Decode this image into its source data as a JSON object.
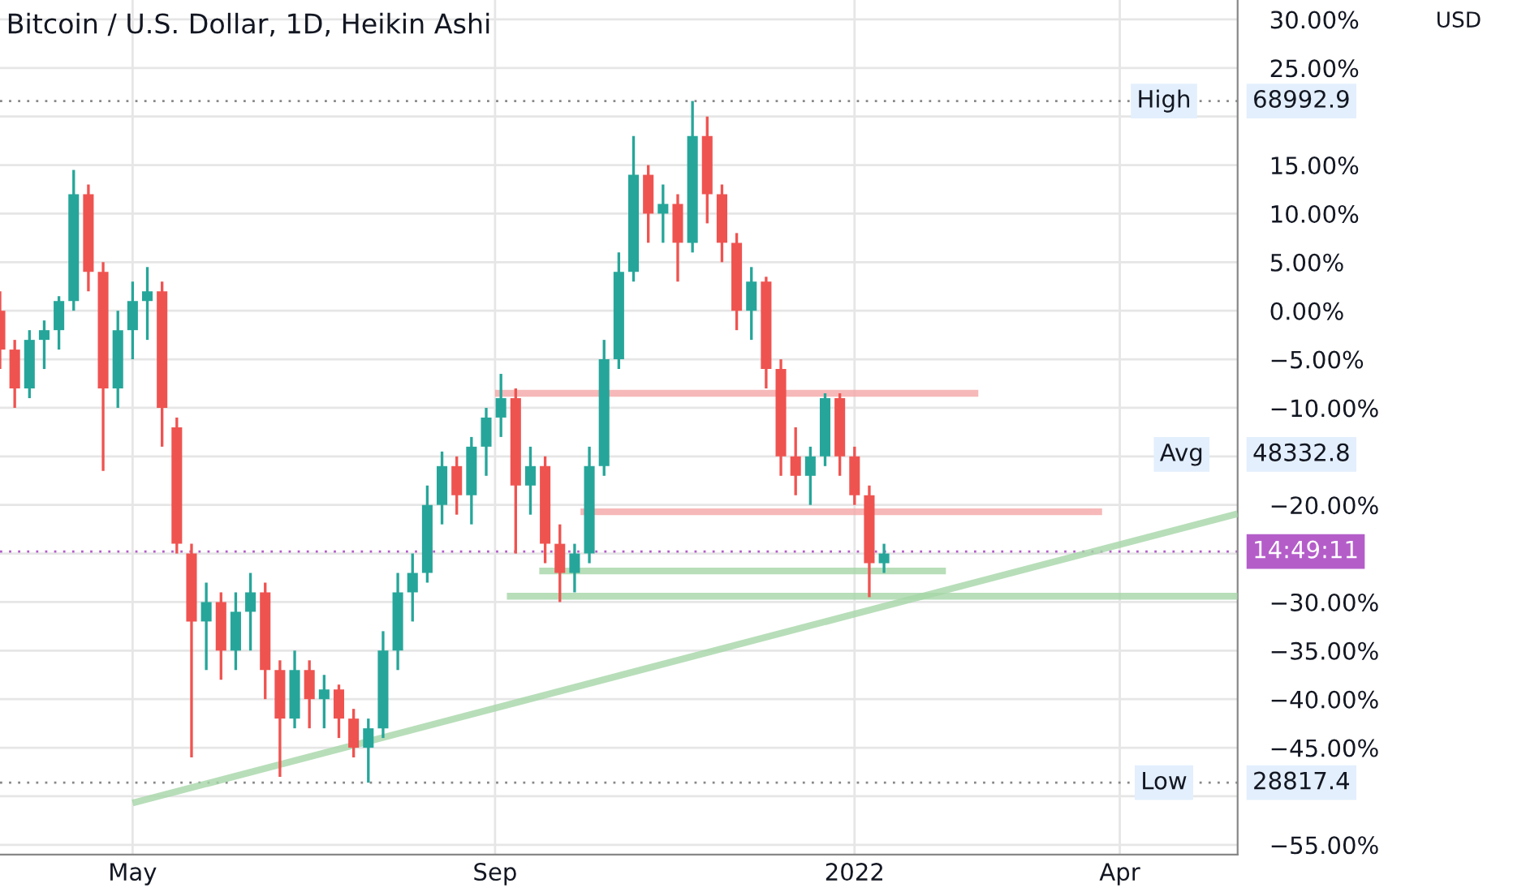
{
  "chart_data": {
    "type": "candlestick",
    "title": "Bitcoin / U.S. Dollar, 1D, Heikin Ashi",
    "x": [
      "2021-03-17",
      "2021-03-22",
      "2021-03-27",
      "2021-04-01",
      "2021-04-06",
      "2021-04-11",
      "2021-04-16",
      "2021-04-21",
      "2021-04-26",
      "2021-05-01",
      "2021-05-06",
      "2021-05-11",
      "2021-05-16",
      "2021-05-21",
      "2021-05-26",
      "2021-05-31",
      "2021-06-05",
      "2021-06-10",
      "2021-06-15",
      "2021-06-20",
      "2021-06-25",
      "2021-06-30",
      "2021-07-05",
      "2021-07-10",
      "2021-07-15",
      "2021-07-20",
      "2021-07-25",
      "2021-07-30",
      "2021-08-04",
      "2021-08-09",
      "2021-08-14",
      "2021-08-19",
      "2021-08-24",
      "2021-08-29",
      "2021-09-03",
      "2021-09-08",
      "2021-09-13",
      "2021-09-18",
      "2021-09-23",
      "2021-09-28",
      "2021-10-03",
      "2021-10-08",
      "2021-10-13",
      "2021-10-18",
      "2021-10-23",
      "2021-10-28",
      "2021-11-02",
      "2021-11-07",
      "2021-11-12",
      "2021-11-17",
      "2021-11-22",
      "2021-11-27",
      "2021-12-02",
      "2021-12-07",
      "2021-12-12",
      "2021-12-17",
      "2021-12-22",
      "2021-12-27",
      "2022-01-01",
      "2022-01-06",
      "2022-01-11"
    ],
    "ohlc": [
      [
        0,
        2,
        -6,
        -4
      ],
      [
        -4,
        -3,
        -10,
        -8
      ],
      [
        -8,
        -2,
        -9,
        -3
      ],
      [
        -3,
        -1,
        -6,
        -2
      ],
      [
        -2,
        1.5,
        -4,
        1
      ],
      [
        1,
        14.5,
        0,
        12
      ],
      [
        12,
        13,
        2,
        4
      ],
      [
        4,
        5,
        -16.5,
        -8
      ],
      [
        -8,
        0,
        -10,
        -2
      ],
      [
        -2,
        3,
        -5,
        1
      ],
      [
        1,
        4.5,
        -3,
        2
      ],
      [
        2,
        3,
        -14,
        -10
      ],
      [
        -12,
        -11,
        -25,
        -24
      ],
      [
        -25,
        -24,
        -46,
        -32
      ],
      [
        -32,
        -28,
        -37,
        -30
      ],
      [
        -30,
        -29,
        -38,
        -35
      ],
      [
        -35,
        -29,
        -37,
        -31
      ],
      [
        -31,
        -27,
        -35,
        -29
      ],
      [
        -29,
        -28,
        -40,
        -37
      ],
      [
        -37,
        -36,
        -48,
        -42
      ],
      [
        -42,
        -35,
        -43,
        -37
      ],
      [
        -37,
        -36,
        -43,
        -40
      ],
      [
        -40,
        -37.5,
        -43,
        -39
      ],
      [
        -39,
        -38.5,
        -44,
        -42
      ],
      [
        -42,
        -41,
        -46,
        -45
      ],
      [
        -45,
        -42,
        -48.6,
        -43
      ],
      [
        -43,
        -33,
        -44,
        -35
      ],
      [
        -35,
        -27,
        -37,
        -29
      ],
      [
        -29,
        -25,
        -32,
        -27
      ],
      [
        -27,
        -18,
        -28,
        -20
      ],
      [
        -20,
        -14.5,
        -22,
        -16
      ],
      [
        -16,
        -15,
        -21,
        -19
      ],
      [
        -19,
        -13,
        -22,
        -14
      ],
      [
        -14,
        -10,
        -17,
        -11
      ],
      [
        -11,
        -6.5,
        -13,
        -9
      ],
      [
        -9,
        -8,
        -25,
        -18
      ],
      [
        -18,
        -14,
        -21,
        -16
      ],
      [
        -16,
        -15,
        -26,
        -24
      ],
      [
        -24,
        -22,
        -30,
        -27
      ],
      [
        -27,
        -24,
        -29,
        -25
      ],
      [
        -25,
        -14,
        -26,
        -16
      ],
      [
        -16,
        -3,
        -17,
        -5
      ],
      [
        -5,
        6,
        -6,
        4
      ],
      [
        4,
        18,
        3,
        14
      ],
      [
        14,
        15,
        7,
        10
      ],
      [
        10,
        13,
        7,
        11
      ],
      [
        11,
        12,
        3,
        7
      ],
      [
        7,
        21.6,
        6,
        18
      ],
      [
        18,
        20,
        9,
        12
      ],
      [
        12,
        13,
        5,
        7
      ],
      [
        7,
        8,
        -2,
        0
      ],
      [
        0,
        4.5,
        -3,
        3
      ],
      [
        3,
        3.5,
        -8,
        -6
      ],
      [
        -6,
        -5,
        -17,
        -15
      ],
      [
        -15,
        -12,
        -19,
        -17
      ],
      [
        -17,
        -14,
        -20,
        -15
      ],
      [
        -15,
        -8.5,
        -16,
        -9
      ],
      [
        -9,
        -8.5,
        -17,
        -15
      ],
      [
        -15,
        -14,
        -20,
        -19
      ],
      [
        -19,
        -18,
        -29.5,
        -26
      ],
      [
        -26,
        -24,
        -27,
        -25
      ]
    ],
    "colors": [
      "#ef5350",
      "#ef5350",
      "#26a69a",
      "#26a69a",
      "#26a69a",
      "#26a69a",
      "#ef5350",
      "#ef5350",
      "#26a69a",
      "#26a69a",
      "#26a69a",
      "#ef5350",
      "#ef5350",
      "#ef5350",
      "#26a69a",
      "#ef5350",
      "#26a69a",
      "#26a69a",
      "#ef5350",
      "#ef5350",
      "#26a69a",
      "#ef5350",
      "#26a69a",
      "#ef5350",
      "#ef5350",
      "#26a69a",
      "#26a69a",
      "#26a69a",
      "#26a69a",
      "#26a69a",
      "#26a69a",
      "#ef5350",
      "#26a69a",
      "#26a69a",
      "#26a69a",
      "#ef5350",
      "#26a69a",
      "#ef5350",
      "#ef5350",
      "#26a69a",
      "#26a69a",
      "#26a69a",
      "#26a69a",
      "#26a69a",
      "#ef5350",
      "#26a69a",
      "#ef5350",
      "#26a69a",
      "#ef5350",
      "#ef5350",
      "#ef5350",
      "#26a69a",
      "#ef5350",
      "#ef5350",
      "#ef5350",
      "#26a69a",
      "#26a69a",
      "#ef5350",
      "#ef5350",
      "#ef5350",
      "#26a69a"
    ],
    "series": [
      {
        "type": "line",
        "color": "#f4a6a6",
        "x": [
          "2021-09-01",
          "2022-02-12"
        ],
        "values": [
          -8.5,
          -8.5
        ]
      },
      {
        "type": "line",
        "color": "#f4a6a6",
        "x": [
          "2021-09-30",
          "2022-03-26"
        ],
        "values": [
          -20.7,
          -20.7
        ]
      },
      {
        "type": "line",
        "color": "#a5d6a7",
        "x": [
          "2021-09-16",
          "2022-02-01"
        ],
        "values": [
          -26.8,
          -26.8
        ]
      },
      {
        "type": "line",
        "color": "#a5d6a7",
        "x": [
          "2021-09-05",
          "2022-05-11"
        ],
        "values": [
          -29.4,
          -29.4
        ]
      },
      {
        "type": "line",
        "color": "#a5d6a7",
        "x": [
          "2021-05-01",
          "2022-05-11"
        ],
        "values": [
          -50.7,
          -20.9
        ]
      }
    ],
    "ref_lines": [
      {
        "axis": "y",
        "value": 21.6,
        "label": "High",
        "line_style": "dotted"
      },
      {
        "axis": "y",
        "value": -48.6,
        "label": "Low",
        "line_style": "dotted"
      },
      {
        "axis": "y",
        "value": -24.8,
        "color": "#b45dc9",
        "line_style": "dotted"
      }
    ],
    "annotations": [
      {
        "text": "Avg",
        "x": "2022-04-22",
        "y": -14.8
      },
      {
        "text": "68992.9",
        "x": "2022-05-11",
        "y": 21.6
      },
      "48332.8",
      {
        "text": "28817.4",
        "x": "2022-05-11",
        "y": -48.6
      },
      {
        "text": "14:49:11",
        "x": "2022-05-11",
        "y": -24.8
      },
      "USD"
    ],
    "xlim": [
      "2021-03-17",
      "2022-05-11"
    ],
    "xticks": [
      {
        "value": "2021-05-01",
        "label": "May"
      },
      {
        "value": "2021-09-01",
        "label": "Sep"
      },
      {
        "value": "2022-01-01",
        "label": "2022"
      },
      {
        "value": "2022-04-01",
        "label": "Apr"
      }
    ],
    "ylim": [
      -56,
      32
    ],
    "yticks": [
      {
        "value": 30,
        "label": "30.00%"
      },
      {
        "value": 25,
        "label": "25.00%"
      },
      {
        "value": 20,
        "label": null
      },
      {
        "value": 15,
        "label": "15.00%"
      },
      {
        "value": 10,
        "label": "10.00%"
      },
      {
        "value": 5,
        "label": "5.00%"
      },
      {
        "value": 0,
        "label": "0.00%"
      },
      {
        "value": -5,
        "label": "−5.00%"
      },
      {
        "value": -10,
        "label": "−10.00%"
      },
      {
        "value": -15,
        "label": null
      },
      {
        "value": -20,
        "label": "−20.00%"
      },
      {
        "value": -25,
        "label": null
      },
      {
        "value": -30,
        "label": "−30.00%"
      },
      {
        "value": -35,
        "label": "−35.00%"
      },
      {
        "value": -40,
        "label": "−40.00%"
      },
      {
        "value": -45,
        "label": "−45.00%"
      },
      {
        "value": -50,
        "label": null
      },
      {
        "value": -55,
        "label": "−55.00%"
      }
    ],
    "grid": true
  }
}
